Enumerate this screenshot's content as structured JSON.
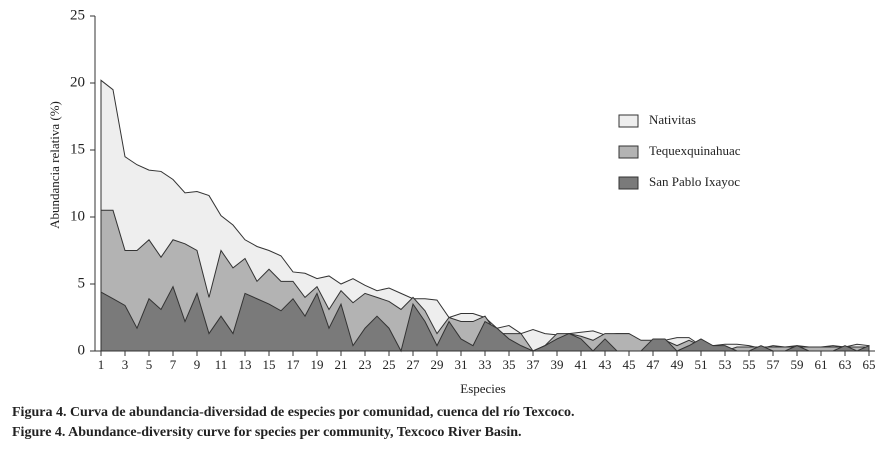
{
  "chart_data": {
    "type": "area",
    "y_label": "Abundancia relativa (%)",
    "x_label": "Especies",
    "captions": [
      "Figura 4. Curva de abundancia-diversidad de especies por comunidad, cuenca del río Texcoco.",
      "Figure 4. Abundance-diversity curve for species per community, Texcoco River Basin."
    ],
    "x": [
      1,
      2,
      3,
      4,
      5,
      6,
      7,
      8,
      9,
      10,
      11,
      12,
      13,
      14,
      15,
      16,
      17,
      18,
      19,
      20,
      21,
      22,
      23,
      24,
      25,
      26,
      27,
      28,
      29,
      30,
      31,
      32,
      33,
      34,
      35,
      36,
      37,
      38,
      39,
      40,
      41,
      42,
      43,
      44,
      45,
      46,
      47,
      48,
      49,
      50,
      51,
      52,
      53,
      54,
      55,
      56,
      57,
      58,
      59,
      60,
      61,
      62,
      63,
      64,
      65
    ],
    "xlim": [
      0.5,
      65.5
    ],
    "xticks": [
      1,
      3,
      5,
      7,
      9,
      11,
      13,
      15,
      17,
      19,
      21,
      23,
      25,
      27,
      29,
      31,
      33,
      35,
      37,
      39,
      41,
      43,
      45,
      47,
      49,
      51,
      53,
      55,
      57,
      59,
      61,
      63,
      65
    ],
    "ylim": [
      0,
      25
    ],
    "yticks": [
      0,
      5,
      10,
      15,
      20,
      25
    ],
    "legend": "upper right",
    "series": [
      {
        "name": "Nativitas",
        "color": "#eeeeee",
        "values": [
          20.2,
          19.5,
          14.5,
          13.9,
          13.5,
          13.4,
          12.8,
          11.8,
          11.9,
          11.6,
          10.1,
          9.4,
          8.3,
          7.8,
          7.5,
          7.1,
          5.9,
          5.8,
          5.4,
          5.6,
          5.0,
          5.4,
          4.9,
          4.5,
          4.7,
          4.3,
          3.9,
          3.9,
          3.8,
          2.5,
          2.8,
          2.8,
          2.5,
          1.7,
          1.9,
          1.3,
          1.6,
          1.3,
          1.2,
          1.3,
          1.4,
          1.5,
          1.2,
          1.3,
          1.3,
          0.7,
          0.8,
          0.8,
          1.0,
          1.0,
          0.4,
          0.4,
          0.5,
          0.5,
          0.4,
          0.2,
          0.4,
          0.3,
          0.4,
          0.3,
          0.3,
          0.4,
          0.3,
          0.5,
          0.4
        ]
      },
      {
        "name": "Tequexquinahuac",
        "color": "#b3b3b3",
        "values": [
          10.5,
          10.5,
          7.5,
          7.5,
          8.3,
          7.0,
          8.3,
          8.0,
          7.5,
          4.0,
          7.5,
          6.2,
          6.9,
          5.2,
          6.1,
          5.2,
          5.2,
          4.0,
          4.8,
          3.1,
          4.5,
          3.6,
          4.3,
          4.0,
          3.7,
          3.1,
          4.0,
          3.0,
          1.3,
          2.5,
          2.2,
          2.2,
          2.6,
          1.3,
          1.3,
          1.3,
          0,
          0.4,
          1.3,
          1.3,
          1.1,
          0.8,
          1.3,
          1.3,
          1.3,
          0.8,
          0.8,
          0.8,
          0.4,
          0.8,
          0.4,
          0.4,
          0,
          0.3,
          0.3,
          0.3,
          0.3,
          0.3,
          0.3,
          0.3,
          0.3,
          0.3,
          0.3,
          0.3,
          0.3
        ]
      },
      {
        "name": "San Pablo Ixayoc",
        "color": "#7a7a7a",
        "values": [
          4.4,
          3.9,
          3.4,
          1.7,
          3.9,
          3.1,
          4.8,
          2.2,
          4.3,
          1.3,
          2.6,
          1.3,
          4.3,
          3.9,
          3.5,
          3.0,
          3.9,
          2.6,
          4.3,
          1.7,
          3.5,
          0.4,
          1.7,
          2.6,
          1.7,
          0,
          3.5,
          2.2,
          0.4,
          2.2,
          0.9,
          0.4,
          2.2,
          1.7,
          0.9,
          0.4,
          0,
          0.4,
          0.9,
          1.3,
          0.9,
          0,
          0.9,
          0,
          0,
          0,
          0.9,
          0.9,
          0,
          0.4,
          0.9,
          0.4,
          0.4,
          0,
          0,
          0.4,
          0,
          0,
          0.4,
          0,
          0,
          0,
          0.4,
          0,
          0.4
        ]
      }
    ]
  }
}
